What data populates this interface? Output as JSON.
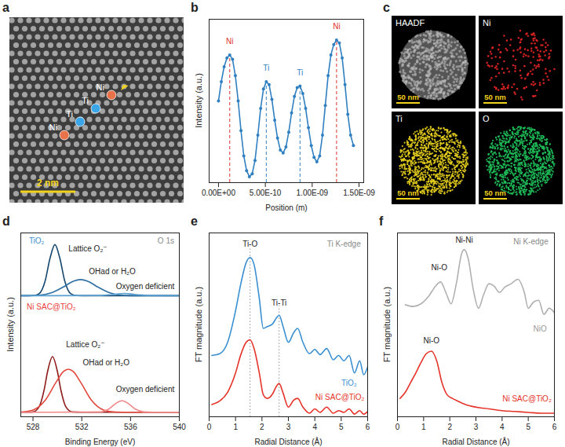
{
  "images": [
    {
      "panel_label": "a",
      "type": "image",
      "atom_labels": [
        "Ni",
        "Ti",
        "Ti",
        "Ni"
      ],
      "colors": [
        "#e8734a",
        "#3aa6e8",
        "#3aa6e8",
        "#e8734a"
      ],
      "scale_bar": "2 nm"
    },
    {
      "panel_label": "c",
      "type": "image",
      "maps": [
        {
          "label": "HAADF",
          "color": "#bdbdbd"
        },
        {
          "label": "Ni",
          "color": "#e02424"
        },
        {
          "label": "Ti",
          "color": "#e6cf1e"
        },
        {
          "label": "O",
          "color": "#1fbf5a"
        }
      ],
      "scale_bar": "50 nm"
    }
  ],
  "chart_data": [
    {
      "panel_label": "b",
      "type": "line",
      "x_label": "Position (m)",
      "y_label": "Intensity (a.u.)",
      "xlim": [
        -1e-10,
        1.55e-09
      ],
      "ylim": [
        0,
        1.1
      ],
      "xticks": [
        {
          "value": 0,
          "label": "0.00E+00"
        },
        {
          "value": 5e-10,
          "label": "5.00E-10"
        },
        {
          "value": 1e-09,
          "label": "1.00E-09"
        },
        {
          "value": 1.5e-09,
          "label": "1.50E-09"
        }
      ],
      "tick_labels": "x",
      "marker": "circle",
      "series": [
        {
          "color": "#2f7fc1",
          "x": [
            0,
            3e-11,
            6e-11,
            9e-11,
            1.2e-10,
            1.5e-10,
            1.8e-10,
            2.1e-10,
            2.4e-10,
            2.7e-10,
            3e-10,
            3.3e-10,
            3.6e-10,
            3.9e-10,
            4.2e-10,
            4.5e-10,
            4.8e-10,
            5.1e-10,
            5.4e-10,
            5.7e-10,
            6e-10,
            6.3e-10,
            6.6e-10,
            6.9e-10,
            7.2e-10,
            7.5e-10,
            7.8e-10,
            8.1e-10,
            8.4e-10,
            8.7e-10,
            9e-10,
            9.3e-10,
            9.6e-10,
            9.9e-10,
            1.02e-09,
            1.05e-09,
            1.08e-09,
            1.11e-09,
            1.14e-09,
            1.17e-09,
            1.2e-09,
            1.23e-09,
            1.26e-09,
            1.29e-09,
            1.32e-09,
            1.35e-09,
            1.38e-09,
            1.41e-09,
            1.44e-09
          ],
          "values": [
            0.55,
            0.68,
            0.78,
            0.84,
            0.86,
            0.83,
            0.72,
            0.55,
            0.35,
            0.18,
            0.08,
            0.04,
            0.06,
            0.15,
            0.32,
            0.5,
            0.63,
            0.68,
            0.66,
            0.56,
            0.42,
            0.3,
            0.22,
            0.2,
            0.24,
            0.34,
            0.47,
            0.58,
            0.64,
            0.65,
            0.6,
            0.5,
            0.37,
            0.25,
            0.17,
            0.14,
            0.18,
            0.32,
            0.52,
            0.72,
            0.86,
            0.93,
            0.96,
            0.94,
            0.84,
            0.66,
            0.46,
            0.32,
            0.25
          ]
        }
      ],
      "reference_lines": [
        {
          "x": 1.2e-10,
          "y": 0.86,
          "color": "#e0302a",
          "line_style": "dashed"
        },
        {
          "x": 5.1e-10,
          "y": 0.68,
          "color": "#2f7fc1",
          "line_style": "dashed"
        },
        {
          "x": 8.7e-10,
          "y": 0.65,
          "color": "#2f7fc1",
          "line_style": "dashed"
        },
        {
          "x": 1.26e-09,
          "y": 0.96,
          "color": "#e0302a",
          "line_style": "dashed"
        }
      ],
      "annotations": [
        {
          "text": "Ni",
          "x": 1.2e-10,
          "y": 0.95,
          "color": "#e0302a"
        },
        {
          "text": "Ti",
          "x": 5.1e-10,
          "y": 0.77,
          "color": "#2f7fc1"
        },
        {
          "text": "Ti",
          "x": 8.7e-10,
          "y": 0.74,
          "color": "#2f7fc1"
        },
        {
          "text": "Ni",
          "x": 1.26e-09,
          "y": 1.05,
          "color": "#e0302a"
        }
      ]
    },
    {
      "panel_label": "d",
      "type": "line",
      "x_label": "Binding Energy (eV)",
      "y_label": "Intensity (a.u.)",
      "xlim": [
        527,
        540
      ],
      "ylim": [
        0,
        2.05
      ],
      "xticks": [
        528,
        532,
        536,
        540
      ],
      "tick_labels": "x",
      "series": [
        {
          "color": "#14466e",
          "x": [
            527,
            528,
            528.5,
            529,
            529.4,
            529.8,
            530.2,
            530.6,
            531.1,
            531.6,
            532,
            540
          ],
          "values": [
            1.35,
            1.351,
            1.372,
            1.516,
            1.769,
            1.92,
            1.769,
            1.516,
            1.372,
            1.351,
            1.35,
            1.35
          ]
        },
        {
          "color": "#2e6fa3",
          "x": [
            527,
            528.5,
            529.5,
            530.5,
            531.2,
            531.9,
            532.6,
            533.3,
            534.3,
            535.3,
            536.5,
            540
          ],
          "values": [
            1.35,
            1.355,
            1.381,
            1.448,
            1.505,
            1.53,
            1.505,
            1.448,
            1.381,
            1.355,
            1.35,
            1.35
          ]
        },
        {
          "color": "#5b9fd0",
          "x": [
            527,
            533.5,
            534.5,
            535.5,
            536.5,
            537.5,
            540
          ],
          "values": [
            1.35,
            1.352,
            1.3625,
            1.375,
            1.3625,
            1.352,
            1.35
          ]
        },
        {
          "color": "#8e1b1b",
          "x": [
            527,
            528,
            528.5,
            528.9,
            529.2,
            529.6,
            530,
            530.3,
            530.7,
            531.2,
            532,
            540
          ],
          "values": [
            0.05,
            0.054,
            0.11,
            0.291,
            0.506,
            0.67,
            0.506,
            0.291,
            0.11,
            0.054,
            0.05,
            0.05
          ]
        },
        {
          "color": "#e2483c",
          "x": [
            527,
            528,
            529,
            529.9,
            530.5,
            530.9,
            531.3,
            531.9,
            532.8,
            533.8,
            534.8,
            536,
            540
          ],
          "values": [
            0.052,
            0.075,
            0.184,
            0.387,
            0.504,
            0.53,
            0.504,
            0.387,
            0.184,
            0.075,
            0.052,
            0.05,
            0.05
          ]
        },
        {
          "color": "#f08a8a",
          "x": [
            527,
            533.5,
            534.2,
            534.8,
            535.3,
            535.8,
            536.4,
            537.1,
            538,
            540
          ],
          "values": [
            0.05,
            0.054,
            0.085,
            0.149,
            0.18,
            0.149,
            0.085,
            0.054,
            0.05,
            0.05
          ]
        }
      ],
      "annotations": [
        {
          "text": "TiO₂",
          "x": 528.3,
          "y": 1.96,
          "color": "#3b8ed0"
        },
        {
          "text": "O 1s",
          "x": 538.9,
          "y": 1.96,
          "color": "#8a8a8a"
        },
        {
          "text": "Lattice O₂⁻",
          "x": 532.5,
          "y": 1.87,
          "color": "#222222"
        },
        {
          "text": "OHad or H₂O",
          "x": 534.5,
          "y": 1.62,
          "color": "#222222"
        },
        {
          "text": "Oxygen deficient",
          "x": 537.2,
          "y": 1.45,
          "color": "#222222"
        },
        {
          "text": "Ni SAC@TiO₂",
          "x": 529.5,
          "y": 1.22,
          "color": "#e8413a"
        },
        {
          "text": "Lattice O₂⁻",
          "x": 532.3,
          "y": 0.8,
          "color": "#222222"
        },
        {
          "text": "OHad or H₂O",
          "x": 534.0,
          "y": 0.6,
          "color": "#222222"
        },
        {
          "text": "Oxygen deficient",
          "x": 537.2,
          "y": 0.3,
          "color": "#222222"
        }
      ]
    },
    {
      "panel_label": "e",
      "type": "line",
      "x_label": "Radial Distance (Å)",
      "y_label": "FT magnitude (a.u.)",
      "xlim": [
        0,
        6
      ],
      "ylim": [
        0,
        2.1
      ],
      "xticks": [
        0,
        1,
        2,
        3,
        4,
        5,
        6
      ],
      "tick_labels": "x",
      "series": [
        {
          "color": "#3a8fd1",
          "x": [
            0.1,
            0.4,
            0.7,
            1.0,
            1.2,
            1.4,
            1.55,
            1.7,
            1.9,
            2.05,
            2.2,
            2.4,
            2.55,
            2.65,
            2.8,
            3.0,
            3.2,
            3.35,
            3.55,
            3.8,
            4.0,
            4.2,
            4.45,
            4.7,
            4.9,
            5.1,
            5.3,
            5.5,
            5.7,
            5.85,
            6.0
          ],
          "values": [
            0.7,
            0.72,
            0.85,
            1.21,
            1.52,
            1.76,
            1.82,
            1.74,
            1.35,
            1.01,
            1.03,
            1.06,
            1.13,
            1.16,
            1.03,
            0.85,
            0.96,
            1.01,
            0.85,
            0.72,
            0.77,
            0.71,
            0.78,
            0.65,
            0.7,
            0.64,
            0.7,
            0.5,
            0.64,
            0.48,
            0.57
          ]
        },
        {
          "color": "#e5332a",
          "x": [
            0.1,
            0.4,
            0.7,
            1.0,
            1.2,
            1.4,
            1.55,
            1.7,
            1.9,
            2.05,
            2.2,
            2.4,
            2.55,
            2.65,
            2.8,
            3.0,
            3.2,
            3.35,
            3.55,
            3.8,
            4.0,
            4.2,
            4.45,
            4.7,
            4.9,
            5.1,
            5.3,
            5.5,
            5.7,
            5.85,
            6.0
          ],
          "values": [
            0.14,
            0.18,
            0.28,
            0.5,
            0.71,
            0.85,
            0.88,
            0.78,
            0.5,
            0.25,
            0.21,
            0.26,
            0.35,
            0.38,
            0.27,
            0.11,
            0.19,
            0.21,
            0.11,
            0.04,
            0.09,
            0.05,
            0.11,
            0.04,
            0.07,
            0.05,
            0.09,
            0.03,
            0.07,
            0.03,
            0.06
          ]
        }
      ],
      "reference_lines": [
        {
          "x": 1.55,
          "y": 1.97,
          "color": "#999999",
          "line_style": "dotted"
        },
        {
          "x": 2.65,
          "y": 1.3,
          "color": "#999999",
          "line_style": "dotted"
        }
      ],
      "annotations": [
        {
          "text": "Ti-O",
          "x": 1.55,
          "y": 1.97,
          "color": "#222222"
        },
        {
          "text": "Ti-Ti",
          "x": 2.65,
          "y": 1.3,
          "color": "#222222"
        },
        {
          "text": "Ti K-edge",
          "x": 5.1,
          "y": 1.97,
          "color": "#8a8a8a"
        },
        {
          "text": "TiO₂",
          "x": 5.3,
          "y": 0.38,
          "color": "#3a8fd1"
        },
        {
          "text": "Ni SAC@TiO₂",
          "x": 4.95,
          "y": 0.22,
          "color": "#e5332a"
        }
      ]
    },
    {
      "panel_label": "f",
      "type": "line",
      "x_label": "Radial Distance (Å)",
      "y_label": "FT magnitude (a.u.)",
      "xlim": [
        0,
        6
      ],
      "ylim": [
        0,
        2.1
      ],
      "xticks": [
        0,
        1,
        2,
        3,
        4,
        5,
        6
      ],
      "tick_labels": "x",
      "series": [
        {
          "color": "#b0b0b0",
          "x": [
            0.3,
            0.6,
            0.9,
            1.2,
            1.45,
            1.65,
            1.85,
            2.05,
            2.25,
            2.45,
            2.55,
            2.7,
            2.9,
            3.1,
            3.3,
            3.5,
            3.7,
            3.9,
            4.1,
            4.35,
            4.6,
            4.85,
            5.0,
            5.2,
            5.4,
            5.6,
            5.8,
            6.0
          ],
          "values": [
            1.28,
            1.26,
            1.29,
            1.38,
            1.49,
            1.54,
            1.42,
            1.29,
            1.52,
            1.86,
            1.91,
            1.81,
            1.45,
            1.24,
            1.4,
            1.52,
            1.49,
            1.42,
            1.48,
            1.52,
            1.57,
            1.42,
            1.24,
            1.31,
            1.33,
            1.17,
            1.24,
            1.19
          ]
        },
        {
          "color": "#e5332a",
          "x": [
            0.1,
            0.3,
            0.5,
            0.7,
            0.9,
            1.1,
            1.3,
            1.5,
            1.7,
            1.9,
            2.1,
            2.3,
            2.6,
            3.0,
            3.5,
            4.0,
            4.5,
            5.0,
            5.5,
            6.0
          ],
          "values": [
            0.21,
            0.28,
            0.39,
            0.5,
            0.62,
            0.72,
            0.75,
            0.64,
            0.39,
            0.25,
            0.21,
            0.18,
            0.14,
            0.11,
            0.09,
            0.07,
            0.06,
            0.05,
            0.04,
            0.04
          ]
        }
      ],
      "annotations": [
        {
          "text": "Ni-Ni",
          "x": 2.55,
          "y": 2.02,
          "color": "#222222"
        },
        {
          "text": "Ni-O",
          "x": 1.6,
          "y": 1.7,
          "color": "#222222"
        },
        {
          "text": "Ni K-edge",
          "x": 5.1,
          "y": 2.0,
          "color": "#8a8a8a"
        },
        {
          "text": "NiO",
          "x": 5.45,
          "y": 1.0,
          "color": "#9a9a9a"
        },
        {
          "text": "Ni-O",
          "x": 1.3,
          "y": 0.87,
          "color": "#222222"
        },
        {
          "text": "Ni SAC@TiO₂",
          "x": 4.95,
          "y": 0.2,
          "color": "#e5332a"
        }
      ]
    }
  ]
}
